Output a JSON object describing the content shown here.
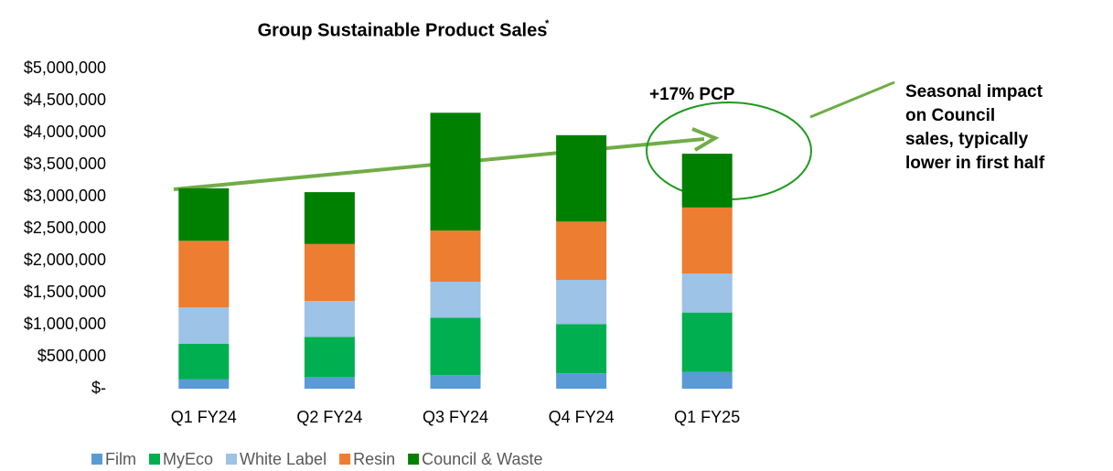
{
  "chart_data": {
    "type": "stacked_bar",
    "title": "Group Sustainable Product Sales",
    "title_marker": "*",
    "categories": [
      "Q1 FY24",
      "Q2 FY24",
      "Q3 FY24",
      "Q4 FY24",
      "Q1 FY25"
    ],
    "series": [
      {
        "name": "Film",
        "color": "#5b9bd5",
        "values": [
          150000,
          180000,
          210000,
          240000,
          260000
        ]
      },
      {
        "name": "MyEco",
        "color": "#00b050",
        "values": [
          550000,
          630000,
          900000,
          770000,
          930000
        ]
      },
      {
        "name": "White Label",
        "color": "#9dc3e6",
        "values": [
          570000,
          560000,
          560000,
          690000,
          610000
        ]
      },
      {
        "name": "Resin",
        "color": "#ed7d31",
        "values": [
          1040000,
          890000,
          800000,
          910000,
          1030000
        ]
      },
      {
        "name": "Council & Waste",
        "color": "#008000",
        "values": [
          820000,
          810000,
          1840000,
          1350000,
          840000
        ]
      }
    ],
    "ylim": [
      0,
      5000000
    ],
    "yticks": [
      {
        "value": 0,
        "label": "$-"
      },
      {
        "value": 500000,
        "label": "$500,000"
      },
      {
        "value": 1000000,
        "label": "$1,000,000"
      },
      {
        "value": 1500000,
        "label": "$1,500,000"
      },
      {
        "value": 2000000,
        "label": "$2,000,000"
      },
      {
        "value": 2500000,
        "label": "$2,500,000"
      },
      {
        "value": 3000000,
        "label": "$3,000,000"
      },
      {
        "value": 3500000,
        "label": "$3,500,000"
      },
      {
        "value": 4000000,
        "label": "$4,000,000"
      },
      {
        "value": 4500000,
        "label": "$4,500,000"
      },
      {
        "value": 5000000,
        "label": "$5,000,000"
      }
    ],
    "grid": false,
    "legend": "bottom",
    "annotations": {
      "growth": "+17% PCP",
      "note": [
        "Seasonal impact",
        "on Council",
        "sales, typically",
        "lower in first half"
      ]
    }
  }
}
